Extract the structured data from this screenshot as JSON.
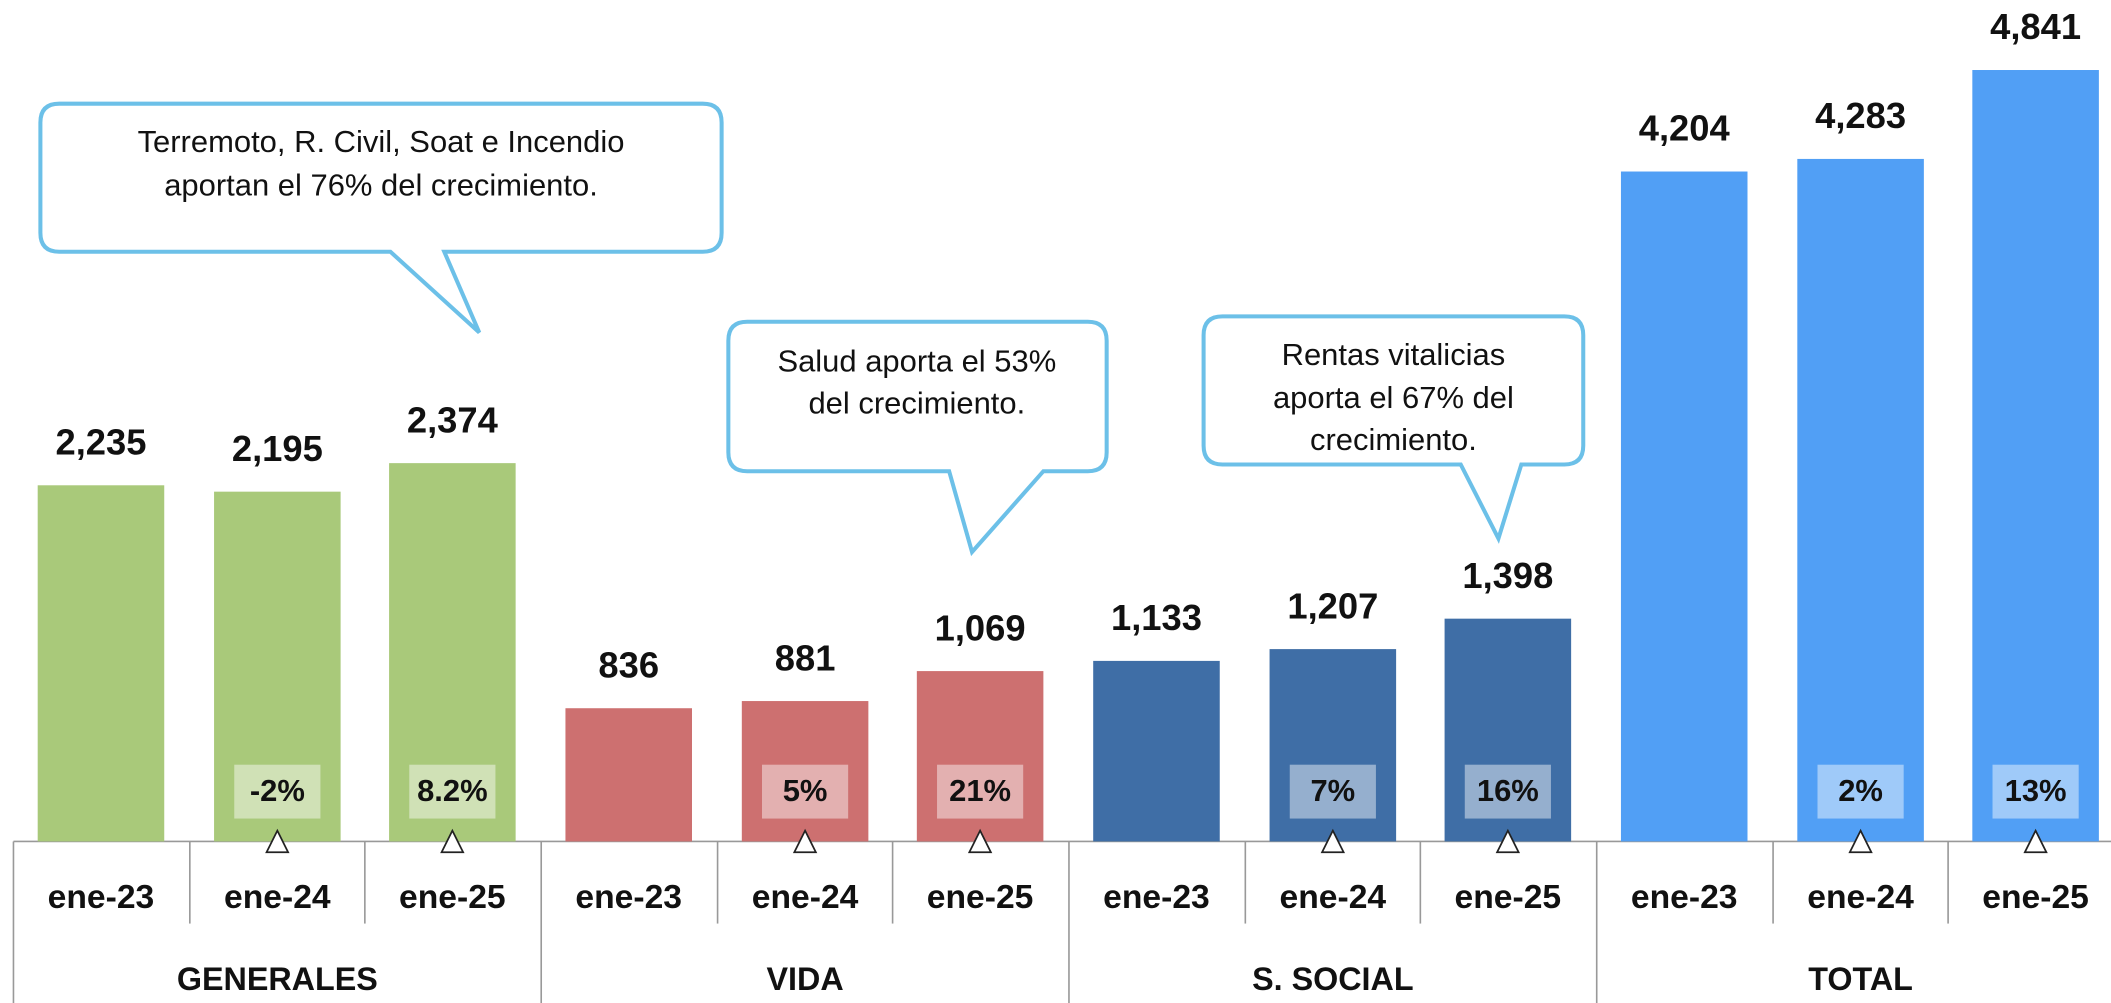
{
  "chart_data": {
    "type": "bar",
    "categories": [
      "ene-23",
      "ene-24",
      "ene-25"
    ],
    "groups": [
      {
        "name": "GENERALES",
        "color": "#a9c97a",
        "values": [
          2235,
          2195,
          2374
        ],
        "value_labels": [
          "2,235",
          "2,195",
          "2,374"
        ],
        "growth_labels": [
          null,
          "-2%",
          "8.2%"
        ]
      },
      {
        "name": "VIDA",
        "color": "#cd7070",
        "values": [
          836,
          881,
          1069
        ],
        "value_labels": [
          "836",
          "881",
          "1,069"
        ],
        "growth_labels": [
          null,
          "5%",
          "21%"
        ]
      },
      {
        "name": "S. SOCIAL",
        "color": "#3f6ea6",
        "values": [
          1133,
          1207,
          1398
        ],
        "value_labels": [
          "1,133",
          "1,207",
          "1,398"
        ],
        "growth_labels": [
          null,
          "7%",
          "16%"
        ]
      },
      {
        "name": "TOTAL",
        "color": "#519ff5",
        "values": [
          4204,
          4283,
          4841
        ],
        "value_labels": [
          "4,204",
          "4,283",
          "4,841"
        ],
        "growth_labels": [
          null,
          "2%",
          "13%"
        ]
      }
    ],
    "annotations": [
      {
        "lines": [
          "Terremoto, R. Civil, Soat e Incendio",
          "aportan el 76% del crecimiento."
        ]
      },
      {
        "lines": [
          "Salud aporta el 53%",
          "del crecimiento."
        ]
      },
      {
        "lines": [
          "Rentas vitalicias",
          "aporta el 67% del",
          "crecimiento."
        ]
      }
    ]
  }
}
